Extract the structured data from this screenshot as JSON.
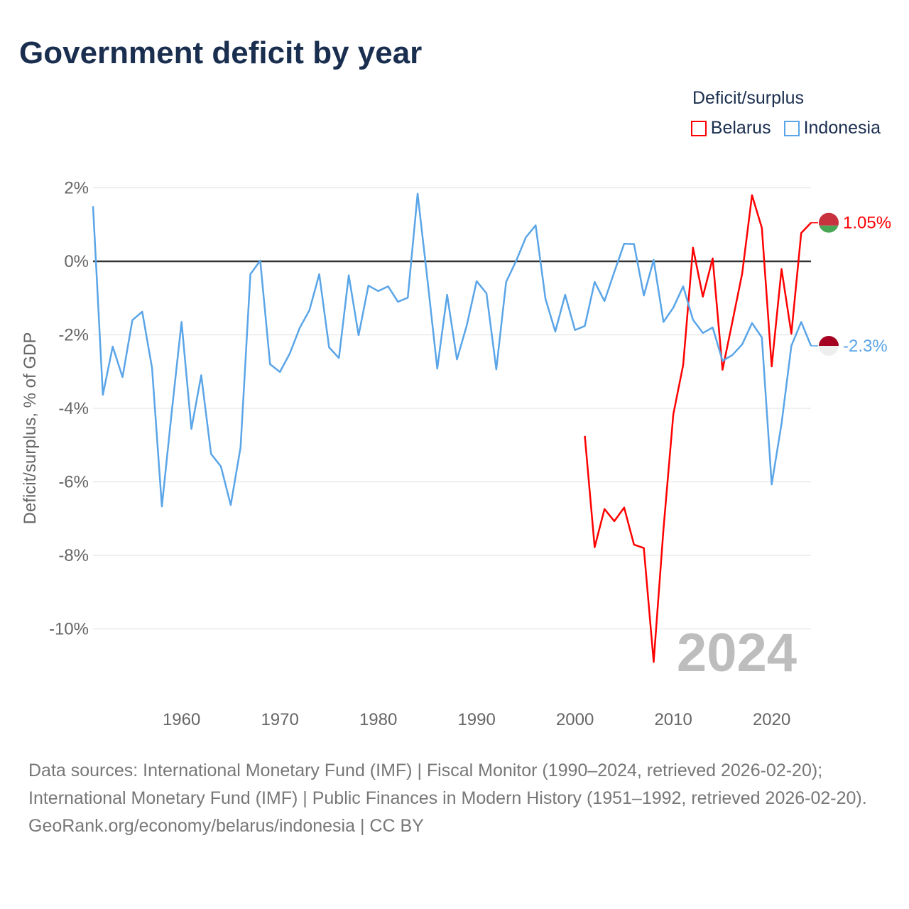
{
  "title": "Government deficit by year",
  "legend": {
    "title": "Deficit/surplus",
    "items": [
      {
        "name": "Belarus",
        "color": "#ff0000"
      },
      {
        "name": "Indonesia",
        "color": "#5aa5e8"
      }
    ]
  },
  "chart_data": {
    "type": "line",
    "title": "Government deficit by year",
    "xlabel": "",
    "ylabel": "Deficit/surplus, % of GDP",
    "xlim": [
      1951,
      2024
    ],
    "ylim": [
      -12,
      2.5
    ],
    "yticks": [
      2,
      0,
      -2,
      -4,
      -6,
      -8,
      -10
    ],
    "ytick_labels": [
      "2%",
      "0%",
      "-2%",
      "-4%",
      "-6%",
      "-8%",
      "-10%"
    ],
    "xticks": [
      1960,
      1970,
      1980,
      1990,
      2000,
      2010,
      2020
    ],
    "xtick_labels": [
      "1960",
      "1970",
      "1980",
      "1990",
      "2000",
      "2010",
      "2020"
    ],
    "grid": true,
    "legend_position": "top-right",
    "annotation": "2024",
    "series": [
      {
        "name": "Belarus",
        "color": "#ff0000",
        "end_label": "1.05%",
        "flag_colors": [
          "#c8313e",
          "#4aa657"
        ],
        "x": [
          2001,
          2002,
          2003,
          2004,
          2005,
          2006,
          2007,
          2008,
          2009,
          2010,
          2011,
          2012,
          2013,
          2014,
          2015,
          2016,
          2017,
          2018,
          2019,
          2020,
          2021,
          2022,
          2023,
          2024
        ],
        "values": [
          -4.75,
          -7.78,
          -6.74,
          -7.07,
          -6.7,
          -7.71,
          -7.8,
          -10.9,
          -7.28,
          -4.16,
          -2.82,
          0.37,
          -0.96,
          0.08,
          -2.95,
          -1.65,
          -0.33,
          1.8,
          0.91,
          -2.86,
          -0.21,
          -1.97,
          0.77,
          1.05
        ]
      },
      {
        "name": "Indonesia",
        "color": "#5aa5e8",
        "end_label": "-2.3%",
        "flag_colors": [
          "#a50021",
          "#eeeeee"
        ],
        "x": [
          1951,
          1952,
          1953,
          1954,
          1955,
          1956,
          1957,
          1958,
          1959,
          1960,
          1961,
          1962,
          1963,
          1964,
          1965,
          1966,
          1967,
          1968,
          1969,
          1970,
          1971,
          1972,
          1973,
          1974,
          1975,
          1976,
          1977,
          1978,
          1979,
          1980,
          1981,
          1982,
          1983,
          1984,
          1985,
          1986,
          1987,
          1988,
          1989,
          1990,
          1991,
          1992,
          1993,
          1994,
          1995,
          1996,
          1997,
          1998,
          1999,
          2000,
          2001,
          2002,
          2003,
          2004,
          2005,
          2006,
          2007,
          2008,
          2009,
          2010,
          2011,
          2012,
          2013,
          2014,
          2015,
          2016,
          2017,
          2018,
          2019,
          2020,
          2021,
          2022,
          2023,
          2024
        ],
        "values": [
          1.5,
          -3.63,
          -2.32,
          -3.15,
          -1.6,
          -1.37,
          -2.9,
          -6.67,
          -4.1,
          -1.65,
          -4.56,
          -3.1,
          -5.24,
          -5.58,
          -6.63,
          -5.06,
          -0.35,
          0.02,
          -2.8,
          -3.01,
          -2.51,
          -1.82,
          -1.33,
          -0.35,
          -2.34,
          -2.63,
          -0.38,
          -2.01,
          -0.66,
          -0.81,
          -0.68,
          -1.1,
          -0.99,
          1.84,
          -0.5,
          -2.92,
          -0.91,
          -2.67,
          -1.74,
          -0.54,
          -0.87,
          -2.94,
          -0.56,
          0.0,
          0.65,
          0.98,
          -1.02,
          -1.91,
          -0.91,
          -1.87,
          -1.76,
          -0.56,
          -1.08,
          -0.29,
          0.48,
          0.47,
          -0.93,
          0.04,
          -1.65,
          -1.26,
          -0.68,
          -1.59,
          -1.95,
          -1.8,
          -2.71,
          -2.55,
          -2.26,
          -1.68,
          -2.07,
          -6.07,
          -4.42,
          -2.3,
          -1.65,
          -2.3
        ]
      }
    ]
  },
  "footer": {
    "sources": "Data sources: International Monetary Fund (IMF) | Fiscal Monitor (1990–2024, retrieved 2026-02-20); International Monetary Fund (IMF) | Public Finances in Modern History (1951–1992, retrieved 2026-02-20).",
    "credit": "GeoRank.org/economy/belarus/indonesia | CC BY"
  }
}
